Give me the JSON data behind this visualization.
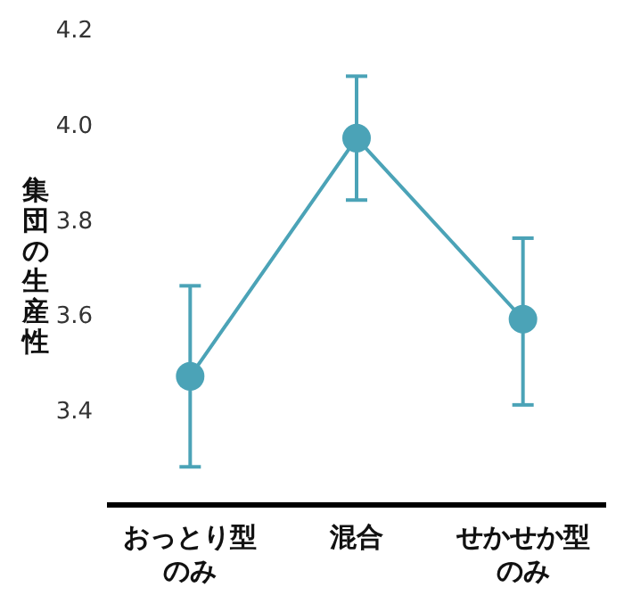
{
  "chart_data": {
    "type": "line",
    "ylabel": "集団の生産性",
    "categories": [
      "おっとり型のみ",
      "混合",
      "せかせか型のみ"
    ],
    "series": [
      {
        "color": "#4ba3b7",
        "values": [
          3.47,
          3.97,
          3.59
        ],
        "errors": [
          [
            3.28,
            3.66
          ],
          [
            3.84,
            4.1
          ],
          [
            3.41,
            3.76
          ]
        ]
      }
    ],
    "ylim": [
      3.2,
      4.2
    ],
    "yticks": [
      {
        "value": 3.4,
        "label": "3.4"
      },
      {
        "value": 3.6,
        "label": "3.6"
      },
      {
        "value": 3.8,
        "label": "3.8"
      },
      {
        "value": 4.0,
        "label": "4.0"
      },
      {
        "value": 4.2,
        "label": "4.2"
      }
    ],
    "marker": "circle",
    "line_style": "solid",
    "grid": false
  }
}
